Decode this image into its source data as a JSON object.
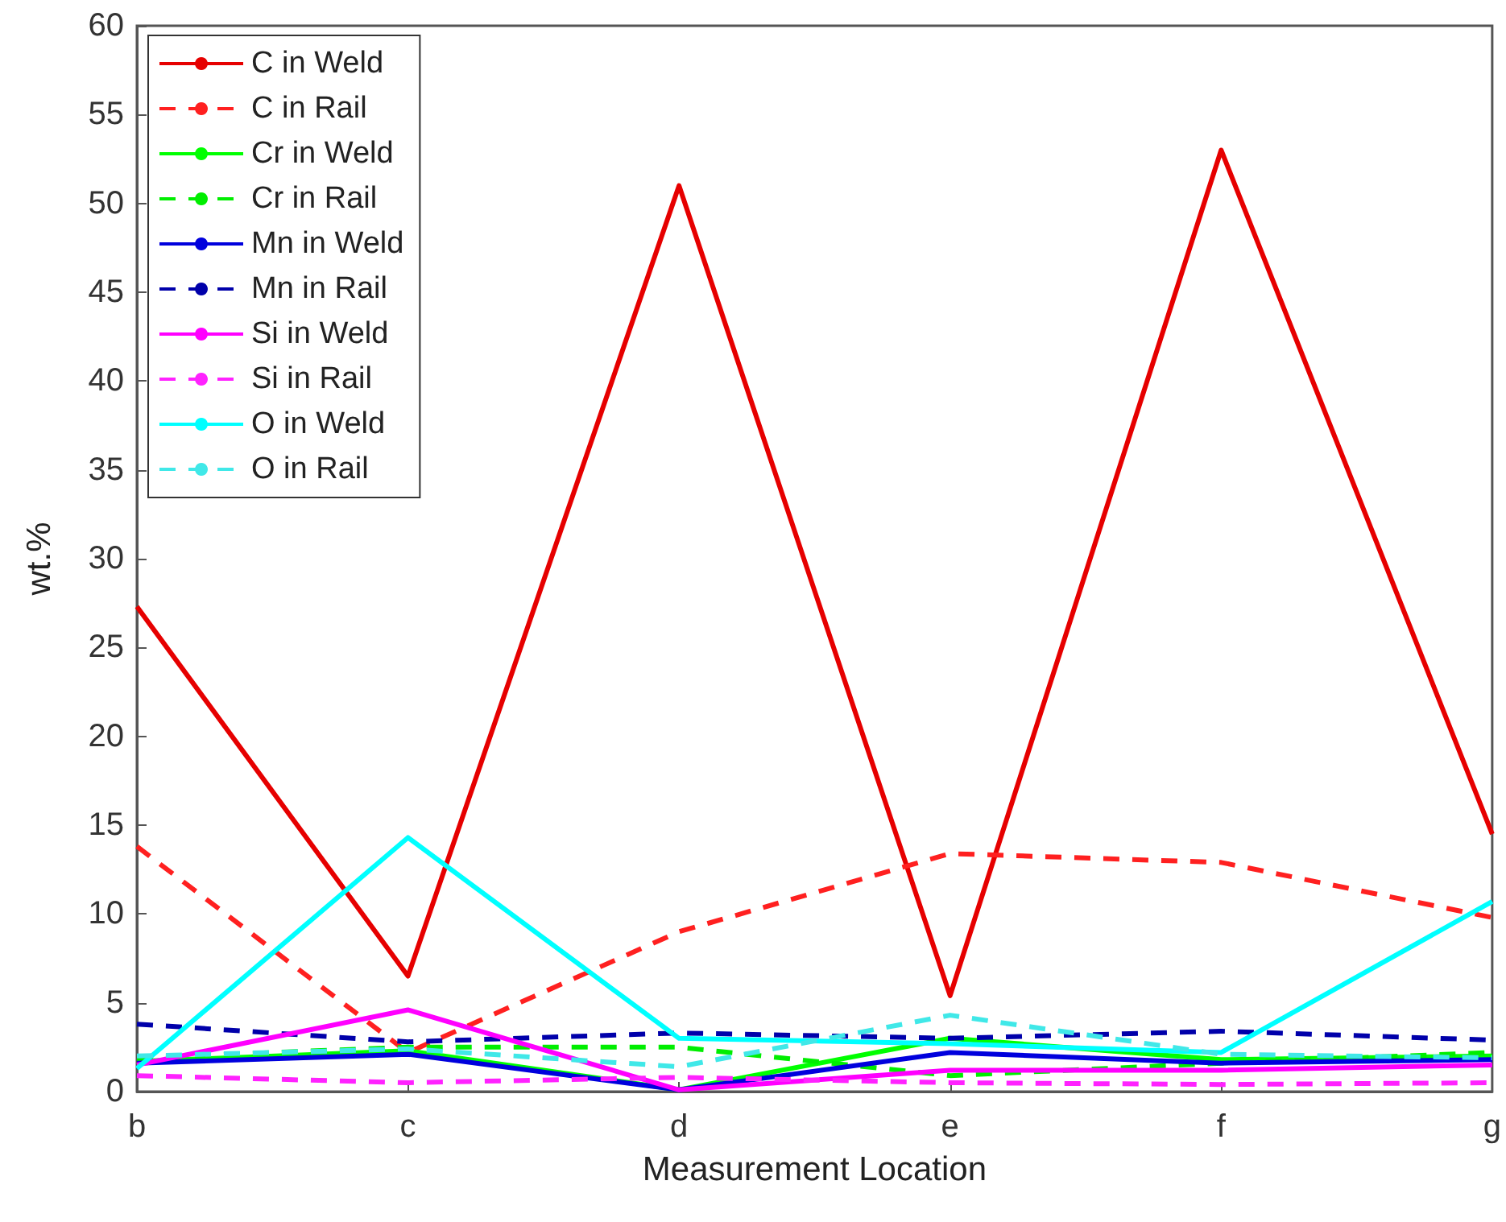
{
  "chart_data": {
    "type": "line",
    "xlabel": "Measurement Location",
    "ylabel": "wt.%",
    "categories": [
      "b",
      "c",
      "d",
      "e",
      "f",
      "g"
    ],
    "ylim": [
      0,
      60
    ],
    "yticks": [
      0,
      5,
      10,
      15,
      20,
      25,
      30,
      35,
      40,
      45,
      50,
      55,
      60
    ],
    "grid": false,
    "legend": "top left",
    "marker": "none",
    "series": [
      {
        "name": "C in Weld",
        "color": "#e60000",
        "line_style": "solid",
        "values": [
          27.3,
          6.5,
          51,
          5.4,
          53,
          14.5
        ]
      },
      {
        "name": "C in Rail",
        "color": "#ff2020",
        "line_style": "dashed",
        "values": [
          13.8,
          2.2,
          9,
          13.4,
          12.9,
          9.8
        ]
      },
      {
        "name": "Cr in Weld",
        "color": "#00ff00",
        "line_style": "solid",
        "values": [
          1.7,
          2.3,
          0.1,
          3.0,
          1.8,
          2.0
        ]
      },
      {
        "name": "Cr in Rail",
        "color": "#00ee00",
        "line_style": "dashed",
        "values": [
          1.9,
          2.5,
          2.5,
          0.9,
          1.6,
          2.2
        ]
      },
      {
        "name": "Mn in Weld",
        "color": "#0000dd",
        "line_style": "solid",
        "values": [
          1.6,
          2.1,
          0.1,
          2.2,
          1.6,
          1.8
        ]
      },
      {
        "name": "Mn in Rail",
        "color": "#0000aa",
        "line_style": "dashed",
        "values": [
          3.8,
          2.8,
          3.3,
          3.0,
          3.4,
          2.9
        ]
      },
      {
        "name": "Si in Weld",
        "color": "#ff00ff",
        "line_style": "solid",
        "values": [
          1.5,
          4.6,
          0.1,
          1.2,
          1.2,
          1.5
        ]
      },
      {
        "name": "Si in Rail",
        "color": "#ff22ff",
        "line_style": "dashed",
        "values": [
          0.9,
          0.5,
          0.8,
          0.5,
          0.4,
          0.5
        ]
      },
      {
        "name": "O in Weld",
        "color": "#00ffff",
        "line_style": "solid",
        "values": [
          1.3,
          14.3,
          3.0,
          2.7,
          2.2,
          10.7
        ]
      },
      {
        "name": "O in Rail",
        "color": "#40e8e8",
        "line_style": "dashed",
        "values": [
          2.0,
          2.4,
          1.4,
          4.3,
          2.1,
          1.9
        ]
      }
    ]
  }
}
